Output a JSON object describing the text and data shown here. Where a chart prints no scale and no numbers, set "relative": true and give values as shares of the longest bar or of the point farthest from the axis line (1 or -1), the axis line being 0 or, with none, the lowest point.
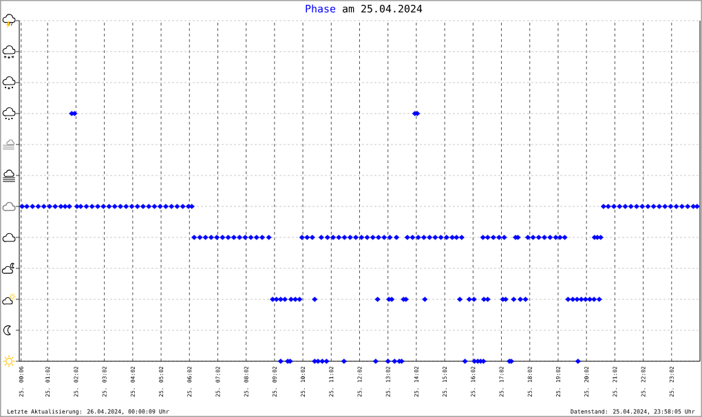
{
  "chart_data": {
    "type": "scatter",
    "title": "am 25.04.2024",
    "relative": true,
    "marker": "diamond",
    "grid": true,
    "xlim": [
      "2024-04-25T00:02",
      "2024-04-26T00:02"
    ],
    "xticks": [
      {
        "value": "2024-04-25T00:06",
        "label": "25. 00:06"
      },
      {
        "value": "2024-04-25T01:02",
        "label": "25. 01:02"
      },
      {
        "value": "2024-04-25T02:02",
        "label": "25. 02:02"
      },
      {
        "value": "2024-04-25T03:02",
        "label": "25. 03:02"
      },
      {
        "value": "2024-04-25T04:02",
        "label": "25. 04:02"
      },
      {
        "value": "2024-04-25T05:02",
        "label": "25. 05:02"
      },
      {
        "value": "2024-04-25T06:02",
        "label": "25. 06:02"
      },
      {
        "value": "2024-04-25T07:02",
        "label": "25. 07:02"
      },
      {
        "value": "2024-04-25T08:02",
        "label": "25. 08:02"
      },
      {
        "value": "2024-04-25T09:02",
        "label": "25. 09:02"
      },
      {
        "value": "2024-04-25T10:02",
        "label": "25. 10:02"
      },
      {
        "value": "2024-04-25T11:02",
        "label": "25. 11:02"
      },
      {
        "value": "2024-04-25T12:02",
        "label": "25. 12:02"
      },
      {
        "value": "2024-04-25T13:02",
        "label": "25. 13:02"
      },
      {
        "value": "2024-04-25T14:02",
        "label": "25. 14:02"
      },
      {
        "value": "2024-04-25T15:02",
        "label": "25. 15:02"
      },
      {
        "value": "2024-04-25T16:02",
        "label": "25. 16:02"
      },
      {
        "value": "2024-04-25T17:02",
        "label": "25. 17:02"
      },
      {
        "value": "2024-04-25T18:02",
        "label": "25. 18:02"
      },
      {
        "value": "2024-04-25T19:02",
        "label": "25. 19:02"
      },
      {
        "value": "2024-04-25T20:02",
        "label": "25. 20:02"
      },
      {
        "value": "2024-04-25T21:02",
        "label": "25. 21:02"
      },
      {
        "value": "2024-04-25T22:02",
        "label": "25. 22:02"
      },
      {
        "value": "2024-04-25T23:02",
        "label": "25. 23:02"
      }
    ],
    "series": [
      {
        "name": "Phase",
        "color": "#0000ff",
        "x": [
          "2024-04-25T00:08",
          "2024-04-25T00:18",
          "2024-04-25T00:30",
          "2024-04-25T00:42",
          "2024-04-25T00:54",
          "2024-04-25T01:06",
          "2024-04-25T01:18",
          "2024-04-25T01:30",
          "2024-04-25T01:39",
          "2024-04-25T01:48",
          "2024-04-25T02:04",
          "2024-04-25T02:12",
          "2024-04-25T02:24",
          "2024-04-25T02:36",
          "2024-04-25T02:48",
          "2024-04-25T03:00",
          "2024-04-25T03:12",
          "2024-04-25T03:24",
          "2024-04-25T03:36",
          "2024-04-25T03:48",
          "2024-04-25T04:00",
          "2024-04-25T04:12",
          "2024-04-25T04:24",
          "2024-04-25T04:36",
          "2024-04-25T04:48",
          "2024-04-25T05:00",
          "2024-04-25T05:12",
          "2024-04-25T05:24",
          "2024-04-25T05:36",
          "2024-04-25T05:48",
          "2024-04-25T06:00",
          "2024-04-25T06:07",
          "2024-04-25T20:38",
          "2024-04-25T20:48",
          "2024-04-25T21:00",
          "2024-04-25T21:12",
          "2024-04-25T21:24",
          "2024-04-25T21:36",
          "2024-04-25T21:48",
          "2024-04-25T22:00",
          "2024-04-25T22:12",
          "2024-04-25T22:24",
          "2024-04-25T22:36",
          "2024-04-25T22:48",
          "2024-04-25T23:00",
          "2024-04-25T23:12",
          "2024-04-25T23:24",
          "2024-04-25T23:36",
          "2024-04-25T23:48",
          "2024-04-25T23:56",
          "2024-04-25T01:53",
          "2024-04-25T01:59",
          "2024-04-25T13:59",
          "2024-04-25T14:04",
          "2024-04-25T06:12",
          "2024-04-25T06:24",
          "2024-04-25T06:36",
          "2024-04-25T06:48",
          "2024-04-25T07:00",
          "2024-04-25T07:12",
          "2024-04-25T07:24",
          "2024-04-25T07:36",
          "2024-04-25T07:48",
          "2024-04-25T08:00",
          "2024-04-25T08:12",
          "2024-04-25T08:24",
          "2024-04-25T08:36",
          "2024-04-25T08:50",
          "2024-04-25T10:00",
          "2024-04-25T10:11",
          "2024-04-25T10:22",
          "2024-04-25T10:41",
          "2024-04-25T10:54",
          "2024-04-25T11:06",
          "2024-04-25T11:18",
          "2024-04-25T11:30",
          "2024-04-25T11:42",
          "2024-04-25T11:54",
          "2024-04-25T12:06",
          "2024-04-25T12:18",
          "2024-04-25T12:30",
          "2024-04-25T12:42",
          "2024-04-25T12:54",
          "2024-04-25T13:06",
          "2024-04-25T13:20",
          "2024-04-25T13:43",
          "2024-04-25T13:54",
          "2024-04-25T14:06",
          "2024-04-25T14:18",
          "2024-04-25T14:30",
          "2024-04-25T14:42",
          "2024-04-25T14:54",
          "2024-04-25T15:06",
          "2024-04-25T15:18",
          "2024-04-25T15:27",
          "2024-04-25T15:38",
          "2024-04-25T16:23",
          "2024-04-25T16:33",
          "2024-04-25T16:45",
          "2024-04-25T16:57",
          "2024-04-25T17:08",
          "2024-04-25T17:32",
          "2024-04-25T17:37",
          "2024-04-25T17:58",
          "2024-04-25T18:09",
          "2024-04-25T18:21",
          "2024-04-25T18:33",
          "2024-04-25T18:45",
          "2024-04-25T18:57",
          "2024-04-25T19:06",
          "2024-04-25T19:16",
          "2024-04-25T20:19",
          "2024-04-25T20:25",
          "2024-04-25T20:32",
          "2024-04-25T08:58",
          "2024-04-25T09:06",
          "2024-04-25T09:15",
          "2024-04-25T09:24",
          "2024-04-25T09:37",
          "2024-04-25T09:46",
          "2024-04-25T09:55",
          "2024-04-25T10:27",
          "2024-04-25T12:40",
          "2024-04-25T13:04",
          "2024-04-25T13:10",
          "2024-04-25T13:35",
          "2024-04-25T13:40",
          "2024-04-25T14:20",
          "2024-04-25T15:34",
          "2024-04-25T15:54",
          "2024-04-25T16:04",
          "2024-04-25T16:25",
          "2024-04-25T16:33",
          "2024-04-25T17:05",
          "2024-04-25T17:11",
          "2024-04-25T17:28",
          "2024-04-25T17:42",
          "2024-04-25T17:53",
          "2024-04-25T19:23",
          "2024-04-25T19:33",
          "2024-04-25T19:42",
          "2024-04-25T19:51",
          "2024-04-25T20:00",
          "2024-04-25T20:09",
          "2024-04-25T20:18",
          "2024-04-25T20:29",
          "2024-04-25T09:15",
          "2024-04-25T09:30",
          "2024-04-25T09:35",
          "2024-04-25T10:27",
          "2024-04-25T10:34",
          "2024-04-25T10:43",
          "2024-04-25T10:52",
          "2024-04-25T11:29",
          "2024-04-25T12:36",
          "2024-04-25T13:02",
          "2024-04-25T13:16",
          "2024-04-25T13:26",
          "2024-04-25T13:31",
          "2024-04-25T15:45",
          "2024-04-25T16:05",
          "2024-04-25T16:12",
          "2024-04-25T16:18",
          "2024-04-25T16:24",
          "2024-04-25T17:19",
          "2024-04-25T17:23",
          "2024-04-25T19:44"
        ],
        "values": [
          0.625,
          0.625,
          0.625,
          0.625,
          0.625,
          0.625,
          0.625,
          0.625,
          0.625,
          0.625,
          0.625,
          0.625,
          0.625,
          0.625,
          0.625,
          0.625,
          0.625,
          0.625,
          0.625,
          0.625,
          0.625,
          0.625,
          0.625,
          0.625,
          0.625,
          0.625,
          0.625,
          0.625,
          0.625,
          0.625,
          0.625,
          0.625,
          0.625,
          0.625,
          0.625,
          0.625,
          0.625,
          0.625,
          0.625,
          0.625,
          0.625,
          0.625,
          0.625,
          0.625,
          0.625,
          0.625,
          0.625,
          0.625,
          0.625,
          0.625,
          1,
          1,
          1,
          1,
          0.5,
          0.5,
          0.5,
          0.5,
          0.5,
          0.5,
          0.5,
          0.5,
          0.5,
          0.5,
          0.5,
          0.5,
          0.5,
          0.5,
          0.5,
          0.5,
          0.5,
          0.5,
          0.5,
          0.5,
          0.5,
          0.5,
          0.5,
          0.5,
          0.5,
          0.5,
          0.5,
          0.5,
          0.5,
          0.5,
          0.5,
          0.5,
          0.5,
          0.5,
          0.5,
          0.5,
          0.5,
          0.5,
          0.5,
          0.5,
          0.5,
          0.5,
          0.5,
          0.5,
          0.5,
          0.5,
          0.5,
          0.5,
          0.5,
          0.5,
          0.5,
          0.5,
          0.5,
          0.5,
          0.5,
          0.5,
          0.5,
          0.5,
          0.5,
          0.5,
          0.25,
          0.25,
          0.25,
          0.25,
          0.25,
          0.25,
          0.25,
          0.25,
          0.25,
          0.25,
          0.25,
          0.25,
          0.25,
          0.25,
          0.25,
          0.25,
          0.25,
          0.25,
          0.25,
          0.25,
          0.25,
          0.25,
          0.25,
          0.25,
          0.25,
          0.25,
          0.25,
          0.25,
          0.25,
          0.25,
          0.25,
          0.25,
          0,
          0,
          0,
          0,
          0,
          0,
          0,
          0,
          0,
          0,
          0,
          0,
          0,
          0,
          0,
          0,
          0,
          0,
          0,
          0,
          0
        ]
      }
    ],
    "annotations": [
      "Letzte Aktualisierung: 26.04.2024, 00:00:09 Uhr",
      "Datenstand: 25.04.2024, 23:58:05 Uhr"
    ]
  }
}
